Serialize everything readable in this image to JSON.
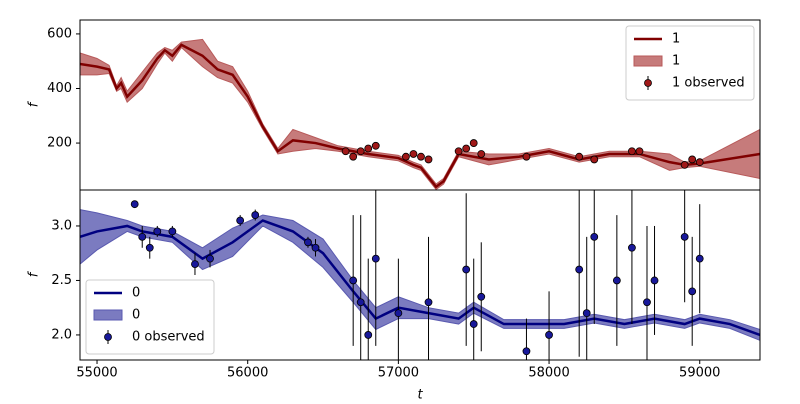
{
  "chart_data": [
    {
      "type": "line",
      "ylabel": "f",
      "legend": "upper right",
      "xlim": [
        54887,
        59400
      ],
      "ylim": [
        28,
        651
      ],
      "yticks": [
        200,
        400,
        600
      ],
      "series": [
        {
          "name": "1",
          "type": "line",
          "color": "#800000",
          "x": [
            54887,
            55000,
            55080,
            55130,
            55160,
            55200,
            55300,
            55400,
            55450,
            55500,
            55560,
            55700,
            55800,
            55900,
            56000,
            56100,
            56200,
            56300,
            56450,
            56600,
            56800,
            57000,
            57100,
            57150,
            57250,
            57300,
            57400,
            57600,
            57800,
            58000,
            58200,
            58400,
            58600,
            58800,
            58900,
            59000,
            59400
          ],
          "values": [
            490,
            480,
            470,
            400,
            420,
            370,
            430,
            510,
            540,
            520,
            560,
            520,
            470,
            450,
            370,
            260,
            170,
            210,
            200,
            180,
            160,
            145,
            120,
            110,
            40,
            60,
            160,
            140,
            150,
            170,
            140,
            160,
            160,
            130,
            120,
            125,
            160
          ]
        },
        {
          "name": "1",
          "type": "band",
          "color": "#b85a5a",
          "x": [
            54887,
            55000,
            55080,
            55130,
            55160,
            55200,
            55300,
            55400,
            55450,
            55500,
            55560,
            55700,
            55800,
            55900,
            56000,
            56100,
            56200,
            56300,
            56450,
            56600,
            56800,
            57000,
            57100,
            57150,
            57250,
            57300,
            57400,
            57600,
            57800,
            58000,
            58200,
            58400,
            58600,
            58800,
            58900,
            59000,
            59400
          ],
          "lower": [
            450,
            450,
            455,
            390,
            400,
            350,
            400,
            490,
            530,
            500,
            550,
            480,
            440,
            420,
            350,
            250,
            160,
            170,
            180,
            170,
            150,
            135,
            110,
            100,
            30,
            50,
            150,
            120,
            140,
            160,
            130,
            150,
            150,
            100,
            110,
            115,
            70
          ],
          "upper": [
            530,
            510,
            485,
            410,
            440,
            390,
            460,
            530,
            550,
            540,
            570,
            580,
            500,
            480,
            390,
            270,
            180,
            250,
            220,
            190,
            170,
            155,
            130,
            120,
            50,
            70,
            170,
            160,
            160,
            180,
            150,
            170,
            170,
            160,
            130,
            135,
            250
          ]
        },
        {
          "name": "1 observed",
          "type": "errorbar",
          "color": "#a01818",
          "x": [
            56650,
            56700,
            56750,
            56800,
            56850,
            57050,
            57100,
            57150,
            57200,
            57400,
            57450,
            57500,
            57550,
            57850,
            58200,
            58300,
            58550,
            58600,
            58900,
            58950,
            59000
          ],
          "values": [
            170,
            150,
            170,
            180,
            190,
            150,
            160,
            150,
            140,
            170,
            180,
            200,
            160,
            150,
            150,
            140,
            170,
            170,
            120,
            140,
            130
          ],
          "errors": [
            8,
            8,
            8,
            8,
            8,
            8,
            8,
            8,
            8,
            8,
            8,
            8,
            8,
            8,
            8,
            8,
            8,
            8,
            8,
            8,
            8
          ]
        }
      ]
    },
    {
      "type": "line",
      "ylabel": "f",
      "xlabel": "t",
      "legend": "lower left",
      "xlim": [
        54887,
        59400
      ],
      "ylim": [
        1.77,
        3.33
      ],
      "xticks": [
        55000,
        56000,
        57000,
        58000,
        59000
      ],
      "yticks": [
        {
          "value": 2,
          "label": "2.0"
        },
        2.5,
        {
          "value": 3,
          "label": "3.0"
        }
      ],
      "series": [
        {
          "name": "0",
          "type": "line",
          "color": "#000080",
          "x": [
            54887,
            55000,
            55200,
            55300,
            55500,
            55700,
            55900,
            56100,
            56300,
            56500,
            56700,
            56850,
            57000,
            57200,
            57400,
            57500,
            57700,
            57900,
            58100,
            58300,
            58500,
            58700,
            58900,
            59000,
            59200,
            59400
          ],
          "values": [
            2.9,
            2.95,
            3.0,
            2.95,
            2.9,
            2.7,
            2.85,
            3.05,
            2.95,
            2.75,
            2.4,
            2.15,
            2.25,
            2.2,
            2.15,
            2.25,
            2.1,
            2.1,
            2.1,
            2.15,
            2.1,
            2.15,
            2.1,
            2.15,
            2.1,
            2.0
          ]
        },
        {
          "name": "0",
          "type": "band",
          "color": "#5a5ab0",
          "x": [
            54887,
            55000,
            55200,
            55300,
            55500,
            55700,
            55900,
            56100,
            56300,
            56500,
            56700,
            56850,
            57000,
            57200,
            57400,
            57500,
            57700,
            57900,
            58100,
            58300,
            58500,
            58700,
            58900,
            59000,
            59200,
            59400
          ],
          "lower": [
            2.65,
            2.78,
            2.95,
            2.9,
            2.85,
            2.6,
            2.72,
            3.0,
            2.85,
            2.62,
            2.3,
            2.05,
            2.15,
            2.15,
            2.1,
            2.2,
            2.06,
            2.06,
            2.06,
            2.11,
            2.06,
            2.11,
            2.06,
            2.11,
            2.06,
            1.95
          ],
          "upper": [
            3.15,
            3.12,
            3.05,
            3.0,
            2.95,
            2.8,
            2.98,
            3.1,
            3.05,
            2.88,
            2.5,
            2.25,
            2.35,
            2.25,
            2.2,
            2.3,
            2.14,
            2.14,
            2.14,
            2.19,
            2.14,
            2.19,
            2.14,
            2.19,
            2.14,
            2.05
          ]
        },
        {
          "name": "0 observed",
          "type": "errorbar",
          "color": "#18189a",
          "x": [
            55250,
            55300,
            55350,
            55400,
            55500,
            55650,
            55750,
            55950,
            56050,
            56400,
            56450,
            56700,
            56750,
            56800,
            56850,
            57000,
            57200,
            57450,
            57500,
            57550,
            57850,
            58000,
            58200,
            58250,
            58300,
            58450,
            58550,
            58650,
            58700,
            58900,
            58950,
            59000
          ],
          "values": [
            3.2,
            2.9,
            2.8,
            2.95,
            2.95,
            2.65,
            2.7,
            3.05,
            3.1,
            2.85,
            2.8,
            2.5,
            2.3,
            2.0,
            2.7,
            2.2,
            2.3,
            2.6,
            2.1,
            2.35,
            1.85,
            2.0,
            2.6,
            2.2,
            2.9,
            2.5,
            2.8,
            2.3,
            2.5,
            2.9,
            2.4,
            2.7
          ],
          "errors": [
            0.03,
            0.1,
            0.1,
            0.05,
            0.05,
            0.1,
            0.08,
            0.05,
            0.05,
            0.05,
            0.08,
            0.6,
            0.8,
            0.7,
            0.8,
            0.5,
            0.6,
            0.7,
            0.6,
            0.5,
            0.3,
            0.4,
            0.8,
            0.7,
            0.8,
            0.6,
            0.7,
            0.7,
            0.5,
            0.6,
            0.5,
            0.5
          ]
        }
      ]
    }
  ]
}
